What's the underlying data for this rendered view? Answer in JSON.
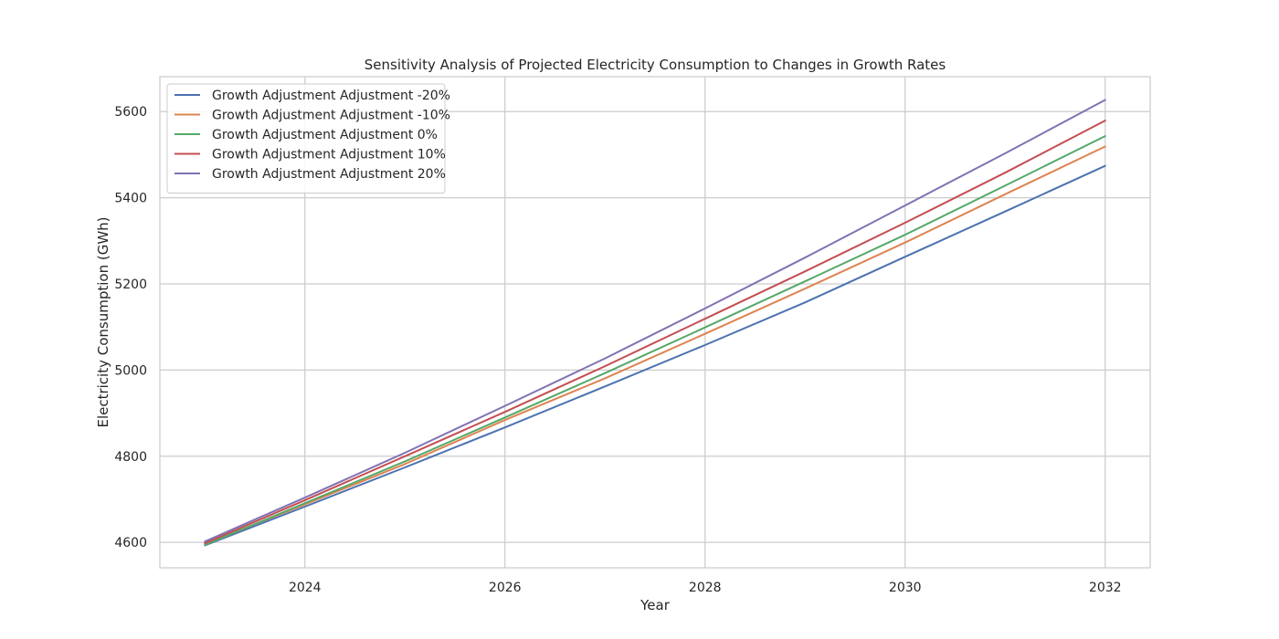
{
  "chart_data": {
    "type": "line",
    "title": "Sensitivity Analysis of Projected Electricity Consumption to Changes in Growth Rates",
    "xlabel": "Year",
    "ylabel": "Electricity Consumption (GWh)",
    "x": [
      2023,
      2024,
      2025,
      2026,
      2027,
      2028,
      2029,
      2030,
      2031,
      2032
    ],
    "xlim": [
      2022.55,
      2032.45
    ],
    "ylim": [
      4541,
      5681
    ],
    "xticks": [
      2024,
      2026,
      2028,
      2030,
      2032
    ],
    "yticks": [
      4600,
      4800,
      5000,
      5200,
      5400,
      5600
    ],
    "grid": true,
    "legend_position": "top-left",
    "series": [
      {
        "name": "Growth Adjustment Adjustment -20%",
        "color": "#4c72b0",
        "values": [
          4593,
          4683,
          4774,
          4867,
          4962,
          5058,
          5157,
          5263,
          5368,
          5474
        ]
      },
      {
        "name": "Growth Adjustment Adjustment -10%",
        "color": "#dd8452",
        "values": [
          4596,
          4688,
          4782,
          4884,
          4981,
          5084,
          5189,
          5296,
          5408,
          5519
        ]
      },
      {
        "name": "Growth Adjustment Adjustment 0%",
        "color": "#55a868",
        "values": [
          4594,
          4691,
          4788,
          4890,
          4993,
          5099,
          5206,
          5314,
          5428,
          5543
        ]
      },
      {
        "name": "Growth Adjustment Adjustment 10%",
        "color": "#c44e52",
        "values": [
          4598,
          4698,
          4800,
          4903,
          5009,
          5119,
          5229,
          5342,
          5458,
          5579
        ]
      },
      {
        "name": "Growth Adjustment Adjustment 20%",
        "color": "#8172b3",
        "values": [
          4602,
          4704,
          4808,
          4917,
          5027,
          5143,
          5261,
          5382,
          5503,
          5627
        ]
      }
    ]
  }
}
